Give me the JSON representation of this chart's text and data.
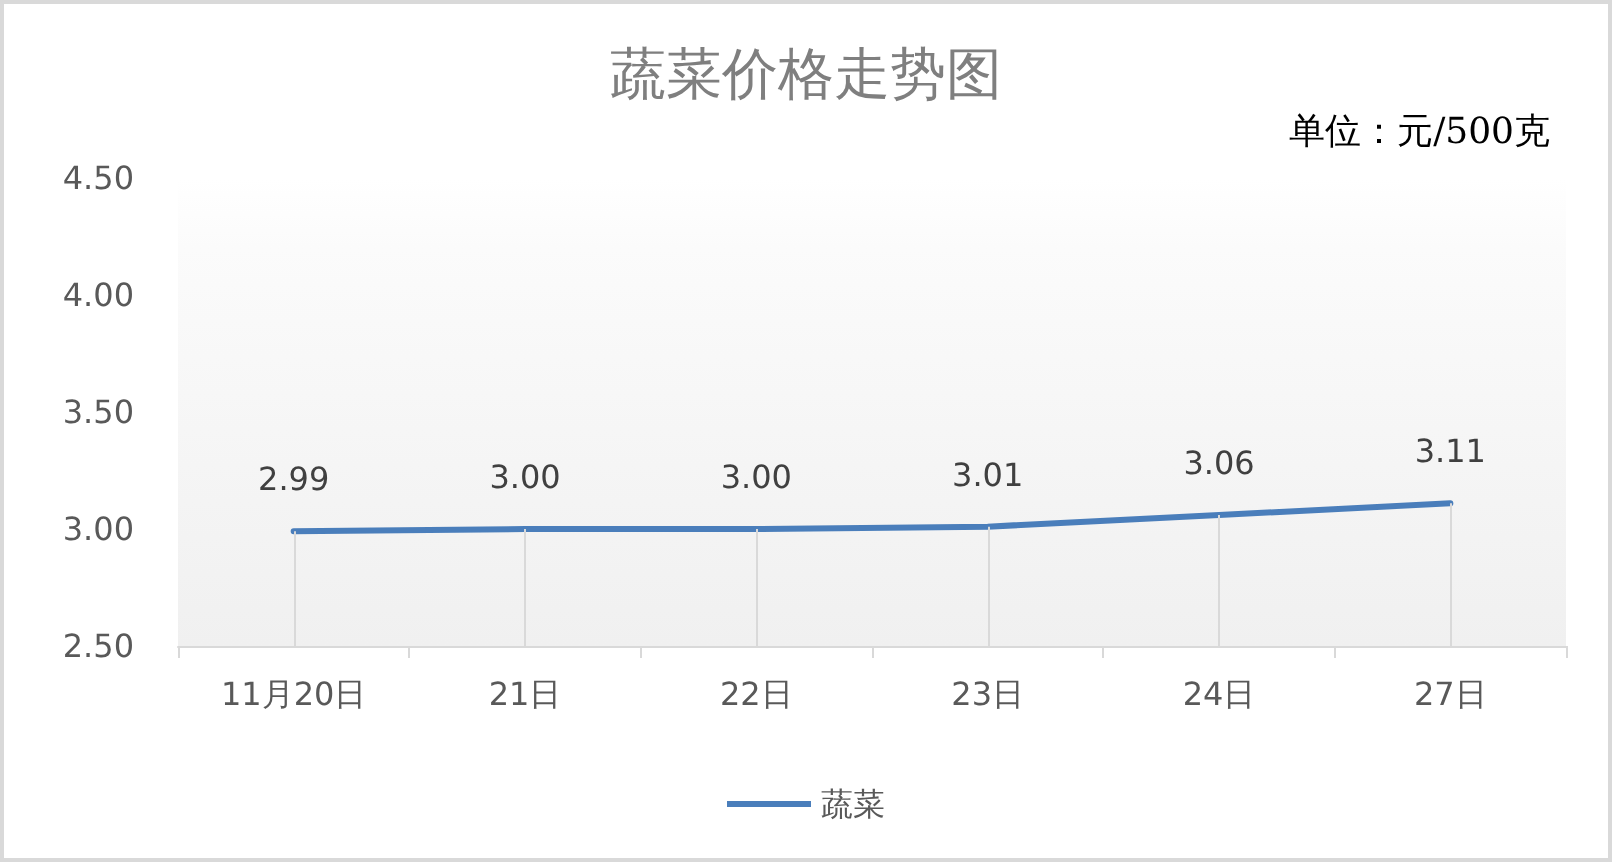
{
  "chart_data": {
    "type": "line",
    "title": "蔬菜价格走势图",
    "annotations": [
      "单位：元/500克"
    ],
    "categories": [
      "11月20日",
      "21日",
      "22日",
      "23日",
      "24日",
      "27日"
    ],
    "series": [
      {
        "name": "蔬菜",
        "color": "#4a7ebb",
        "values": [
          2.99,
          3.0,
          3.0,
          3.01,
          3.06,
          3.11
        ],
        "value_labels": [
          "2.99",
          "3.00",
          "3.00",
          "3.01",
          "3.06",
          "3.11"
        ]
      }
    ],
    "ylim": [
      2.5,
      4.5
    ],
    "yticks": [
      {
        "value": 2.5,
        "label": "2.50"
      },
      {
        "value": 3,
        "label": "3.00"
      },
      {
        "value": 3.5,
        "label": "3.50"
      },
      {
        "value": 4,
        "label": "4.00"
      },
      {
        "value": 4.5,
        "label": "4.50"
      }
    ],
    "legend": "bottom",
    "marker": "none",
    "line_style": "solid"
  }
}
